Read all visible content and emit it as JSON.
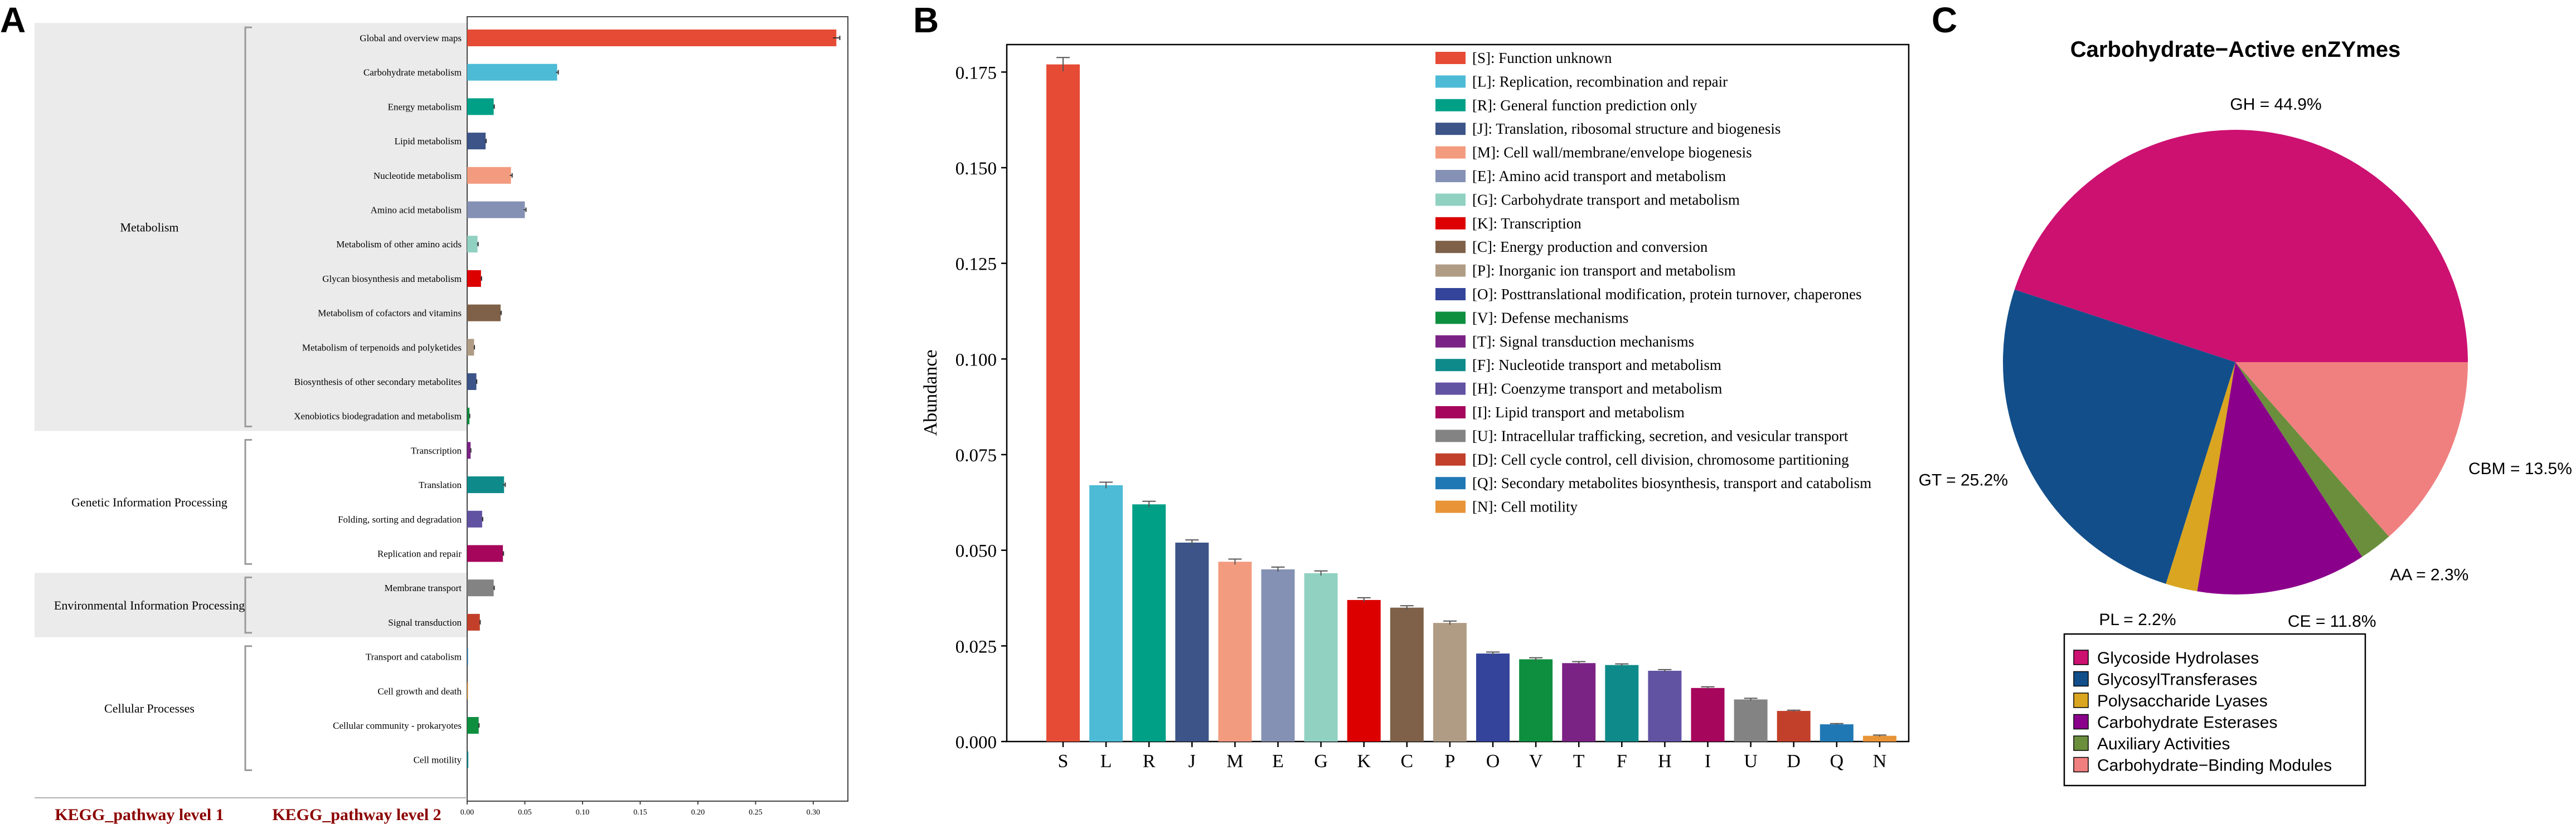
{
  "panels": {
    "a": "A",
    "b": "B",
    "c": "C"
  },
  "colors": {
    "kegg_bg": "#ebebeb",
    "kegg_footer": "#8b0000",
    "cog_s": "#e64b35",
    "cog_l": "#4dbbd5",
    "cog_r": "#00a087",
    "cog_j": "#3c5488",
    "cog_m": "#f39b7f",
    "cog_e": "#8491b4",
    "cog_g": "#91d1c2",
    "cog_k": "#dc0000",
    "cog_c": "#7e6148",
    "cog_p": "#b09c85",
    "cog_o": "#33449a",
    "cog_v": "#0e8f3f",
    "cog_t": "#7b2385",
    "cog_f": "#0f8a8a",
    "cog_h": "#6252a2",
    "cog_i": "#a6065c",
    "cog_u": "#838383",
    "cog_d": "#c2402a",
    "cog_q": "#1f78b4",
    "cog_n": "#e89437",
    "cazy_gh": "#cc1171",
    "cazy_gt": "#124f8a",
    "cazy_pl": "#daa520",
    "cazy_ce": "#8b008b",
    "cazy_aa": "#6b8e3d",
    "cazy_cbm": "#f08080"
  },
  "chart_data": [
    {
      "id": "kegg",
      "type": "bar",
      "orientation": "horizontal",
      "xlim": [
        0,
        0.33
      ],
      "xticks": [
        "0.00",
        "0.05",
        "0.10",
        "0.15",
        "0.20",
        "0.25",
        "0.30"
      ],
      "xtick_values": [
        0,
        0.05,
        0.1,
        0.15,
        0.2,
        0.25,
        0.3
      ],
      "footer_level1": "KEGG_pathway level 1",
      "footer_level2": "KEGG_pathway level 2",
      "groups": [
        {
          "name": "Metabolism",
          "shaded": true,
          "start": 0,
          "end": 11
        },
        {
          "name": "Genetic Information Processing",
          "shaded": false,
          "start": 12,
          "end": 15
        },
        {
          "name": "Environmental Information Processing",
          "shaded": true,
          "start": 16,
          "end": 17
        },
        {
          "name": "Cellular Processes",
          "shaded": false,
          "start": 18,
          "end": 21
        }
      ],
      "bars": [
        {
          "label": "Global and overview maps",
          "value": 0.32,
          "err": 0.003,
          "color": "#e64b35"
        },
        {
          "label": "Carbohydrate metabolism",
          "value": 0.078,
          "err": 0.001,
          "color": "#4dbbd5"
        },
        {
          "label": "Energy metabolism",
          "value": 0.023,
          "err": 0.0005,
          "color": "#00a087"
        },
        {
          "label": "Lipid metabolism",
          "value": 0.016,
          "err": 0.0005,
          "color": "#3c5488"
        },
        {
          "label": "Nucleotide metabolism",
          "value": 0.038,
          "err": 0.001,
          "color": "#f39b7f"
        },
        {
          "label": "Amino acid metabolism",
          "value": 0.05,
          "err": 0.001,
          "color": "#8491b4"
        },
        {
          "label": "Metabolism of other amino acids",
          "value": 0.009,
          "err": 0.0005,
          "color": "#91d1c2"
        },
        {
          "label": "Glycan biosynthesis and metabolism",
          "value": 0.012,
          "err": 0.0005,
          "color": "#dc0000"
        },
        {
          "label": "Metabolism of cofactors and vitamins",
          "value": 0.029,
          "err": 0.0005,
          "color": "#7e6148"
        },
        {
          "label": "Metabolism of terpenoids and polyketides",
          "value": 0.006,
          "err": 0.0003,
          "color": "#b09c85"
        },
        {
          "label": "Biosynthesis of other secondary metabolites",
          "value": 0.008,
          "err": 0.0003,
          "color": "#3c5488"
        },
        {
          "label": "Xenobiotics biodegradation and metabolism",
          "value": 0.002,
          "err": 0.0002,
          "color": "#0e8f3f"
        },
        {
          "label": "Transcription",
          "value": 0.003,
          "err": 0.0002,
          "color": "#7b2385"
        },
        {
          "label": "Translation",
          "value": 0.032,
          "err": 0.001,
          "color": "#0f8a8a"
        },
        {
          "label": "Folding, sorting and degradation",
          "value": 0.013,
          "err": 0.0005,
          "color": "#6252a2"
        },
        {
          "label": "Replication and repair",
          "value": 0.031,
          "err": 0.0005,
          "color": "#a6065c"
        },
        {
          "label": "Membrane transport",
          "value": 0.023,
          "err": 0.0005,
          "color": "#838383"
        },
        {
          "label": "Signal transduction",
          "value": 0.011,
          "err": 0.0003,
          "color": "#c2402a"
        },
        {
          "label": "Transport and catabolism",
          "value": 0.0005,
          "err": 0,
          "color": "#1f78b4"
        },
        {
          "label": "Cell growth and death",
          "value": 0.0005,
          "err": 0,
          "color": "#e89437"
        },
        {
          "label": "Cellular community - prokaryotes",
          "value": 0.01,
          "err": 0.0003,
          "color": "#0e8f3f"
        },
        {
          "label": "Cell motility",
          "value": 0.001,
          "err": 0,
          "color": "#0f8a8a"
        }
      ]
    },
    {
      "id": "cog",
      "type": "bar",
      "ylabel": "Abundance",
      "ylim": [
        0,
        0.18
      ],
      "yticks": [
        "0.000",
        "0.025",
        "0.050",
        "0.075",
        "0.100",
        "0.125",
        "0.150",
        "0.175"
      ],
      "ytick_values": [
        0,
        0.025,
        0.05,
        0.075,
        0.1,
        0.125,
        0.15,
        0.175
      ],
      "categories": [
        "S",
        "L",
        "R",
        "J",
        "M",
        "E",
        "G",
        "K",
        "C",
        "P",
        "O",
        "V",
        "T",
        "F",
        "H",
        "I",
        "U",
        "D",
        "Q",
        "N"
      ],
      "values": [
        0.177,
        0.067,
        0.062,
        0.052,
        0.047,
        0.045,
        0.044,
        0.037,
        0.035,
        0.031,
        0.023,
        0.0215,
        0.0205,
        0.02,
        0.0185,
        0.014,
        0.011,
        0.008,
        0.0045,
        0.0015
      ],
      "errors": [
        0.0018,
        0.0008,
        0.0008,
        0.0007,
        0.0007,
        0.0006,
        0.0006,
        0.0006,
        0.0005,
        0.0005,
        0.0004,
        0.0004,
        0.0004,
        0.0003,
        0.0003,
        0.0003,
        0.0003,
        0.0002,
        0.0002,
        0.0002
      ],
      "colors": [
        "#e64b35",
        "#4dbbd5",
        "#00a087",
        "#3c5488",
        "#f39b7f",
        "#8491b4",
        "#91d1c2",
        "#dc0000",
        "#7e6148",
        "#b09c85",
        "#33449a",
        "#0e8f3f",
        "#7b2385",
        "#0f8a8a",
        "#6252a2",
        "#a6065c",
        "#838383",
        "#c2402a",
        "#1f78b4",
        "#e89437"
      ],
      "legend": [
        "[S]: Function unknown",
        "[L]: Replication, recombination and repair",
        "[R]: General function prediction only",
        "[J]: Translation, ribosomal structure and biogenesis",
        "[M]: Cell wall/membrane/envelope biogenesis",
        "[E]: Amino acid transport and metabolism",
        "[G]: Carbohydrate transport and metabolism",
        "[K]: Transcription",
        "[C]: Energy production and conversion",
        "[P]: Inorganic ion transport and metabolism",
        "[O]: Posttranslational modification, protein turnover, chaperones",
        "[V]: Defense mechanisms",
        "[T]: Signal transduction mechanisms",
        "[F]: Nucleotide transport and metabolism",
        "[H]: Coenzyme transport and metabolism",
        "[I]: Lipid transport and metabolism",
        "[U]: Intracellular trafficking, secretion, and vesicular transport",
        "[D]: Cell cycle control, cell division, chromosome partitioning",
        "[Q]: Secondary metabolites biosynthesis, transport and catabolism",
        "[N]: Cell motility"
      ],
      "legend_position": "top-right"
    },
    {
      "id": "cazy",
      "type": "pie",
      "title": "Carbohydrate−Active enZYmes",
      "slices": [
        {
          "short": "GH",
          "label": "GH = 44.9%",
          "name": "Glycoside Hydrolases",
          "value": 44.9,
          "color": "#cc1171"
        },
        {
          "short": "GT",
          "label": "GT = 25.2%",
          "name": "GlycosylTransferases",
          "value": 25.2,
          "color": "#124f8a"
        },
        {
          "short": "PL",
          "label": "PL = 2.2%",
          "name": "Polysaccharide Lyases",
          "value": 2.2,
          "color": "#daa520"
        },
        {
          "short": "CE",
          "label": "CE = 11.8%",
          "name": "Carbohydrate Esterases",
          "value": 11.8,
          "color": "#8b008b"
        },
        {
          "short": "AA",
          "label": "AA = 2.3%",
          "name": "Auxiliary Activities",
          "value": 2.3,
          "color": "#6b8e3d"
        },
        {
          "short": "CBM",
          "label": "CBM = 13.5%",
          "name": "Carbohydrate−Binding Modules",
          "value": 13.5,
          "color": "#f08080"
        }
      ],
      "legend_position": "bottom"
    }
  ]
}
